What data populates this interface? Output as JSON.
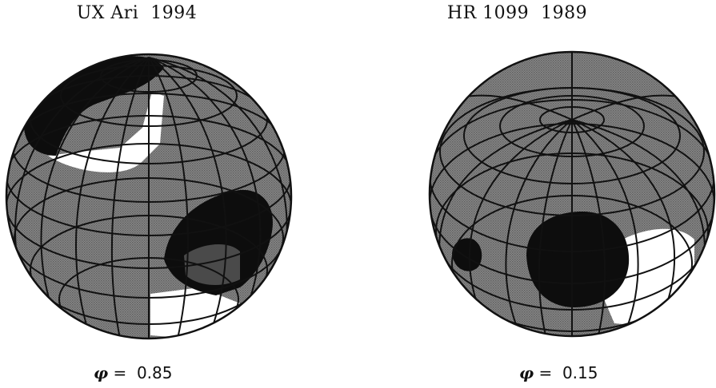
{
  "panels": [
    {
      "title": "UX Ari  1994",
      "phase_symbol": "φ",
      "phase_eq": " =  ",
      "phase_value": "0.85"
    },
    {
      "title": "HR 1099  1989",
      "phase_symbol": "φ",
      "phase_eq": " =  ",
      "phase_value": "0.15"
    }
  ],
  "colors": {
    "surface": "#7a7a7a",
    "spot": "#0d0d0d",
    "bright": "#ffffff",
    "grid": "#111111"
  }
}
